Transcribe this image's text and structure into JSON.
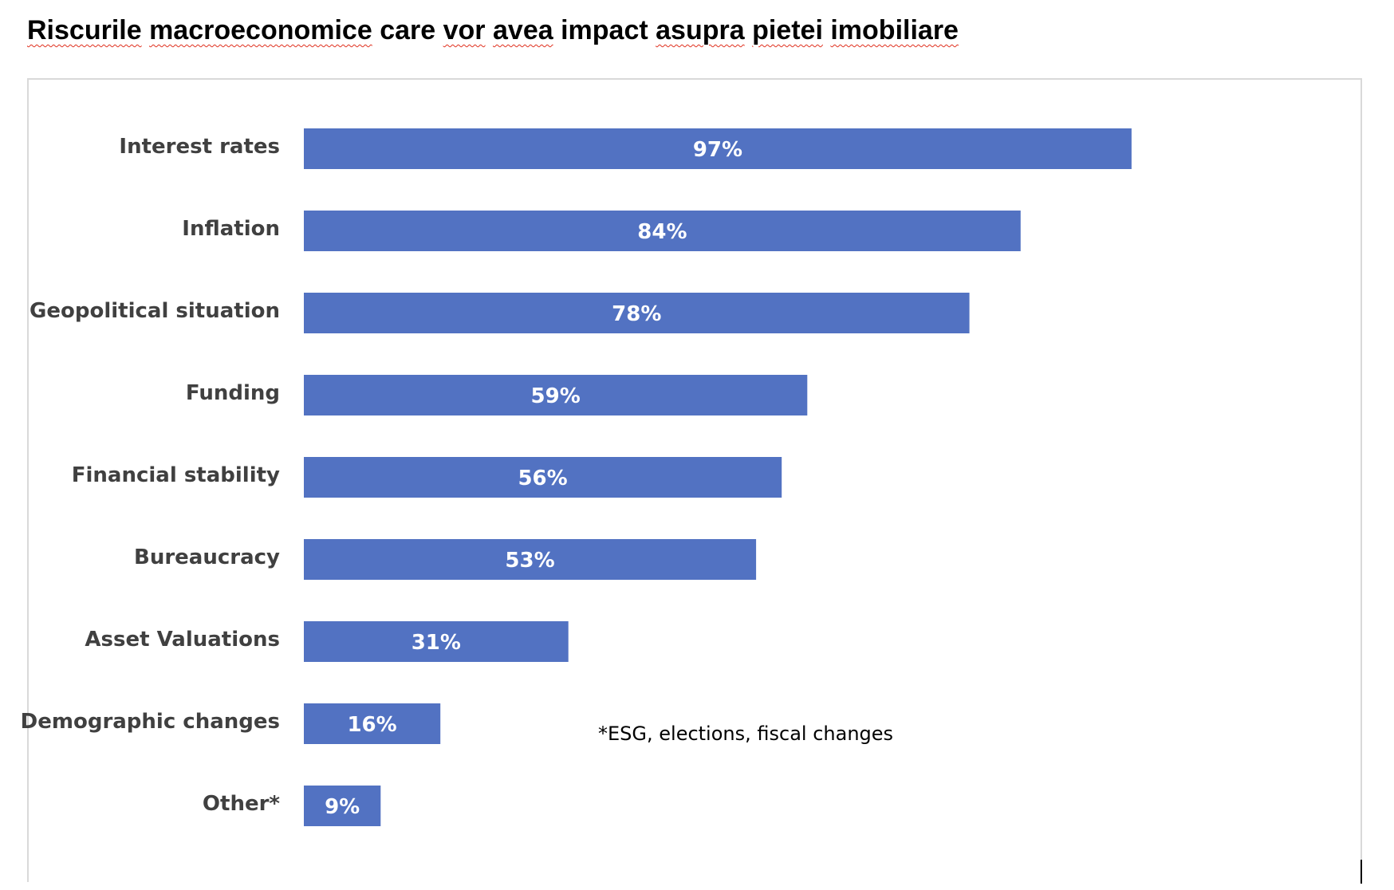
{
  "document": {
    "title_words": [
      "Riscurile",
      "macroeconomice",
      "care",
      "vor",
      "avea",
      "impact",
      "asupra",
      "pietei",
      "imobiliare"
    ],
    "spellcheck_flagged": [
      true,
      true,
      false,
      true,
      true,
      false,
      true,
      true,
      true
    ],
    "footnote": "*ESG, elections, fiscal changes"
  },
  "colors": {
    "bar": "#5272c2",
    "category_text": "#404040",
    "value_text": "#ffffff",
    "frame": "#d9d9d9",
    "spellcheck": "#e0301e"
  },
  "chart_data": {
    "type": "bar",
    "orientation": "horizontal",
    "title": "Riscurile macroeconomice care vor avea impact asupra pietei imobiliare",
    "categories": [
      "Interest rates",
      "Inflation",
      "Geopolitical situation",
      "Funding",
      "Financial stability",
      "Bureaucracy",
      "Asset Valuations",
      "Demographic changes",
      "Other*"
    ],
    "values": [
      97,
      84,
      78,
      59,
      56,
      53,
      31,
      16,
      9
    ],
    "value_labels": [
      "97%",
      "84%",
      "78%",
      "59%",
      "56%",
      "53%",
      "31%",
      "16%",
      "9%"
    ],
    "unit": "%",
    "xlim": [
      0,
      100
    ],
    "grid": false,
    "legend": "none"
  }
}
